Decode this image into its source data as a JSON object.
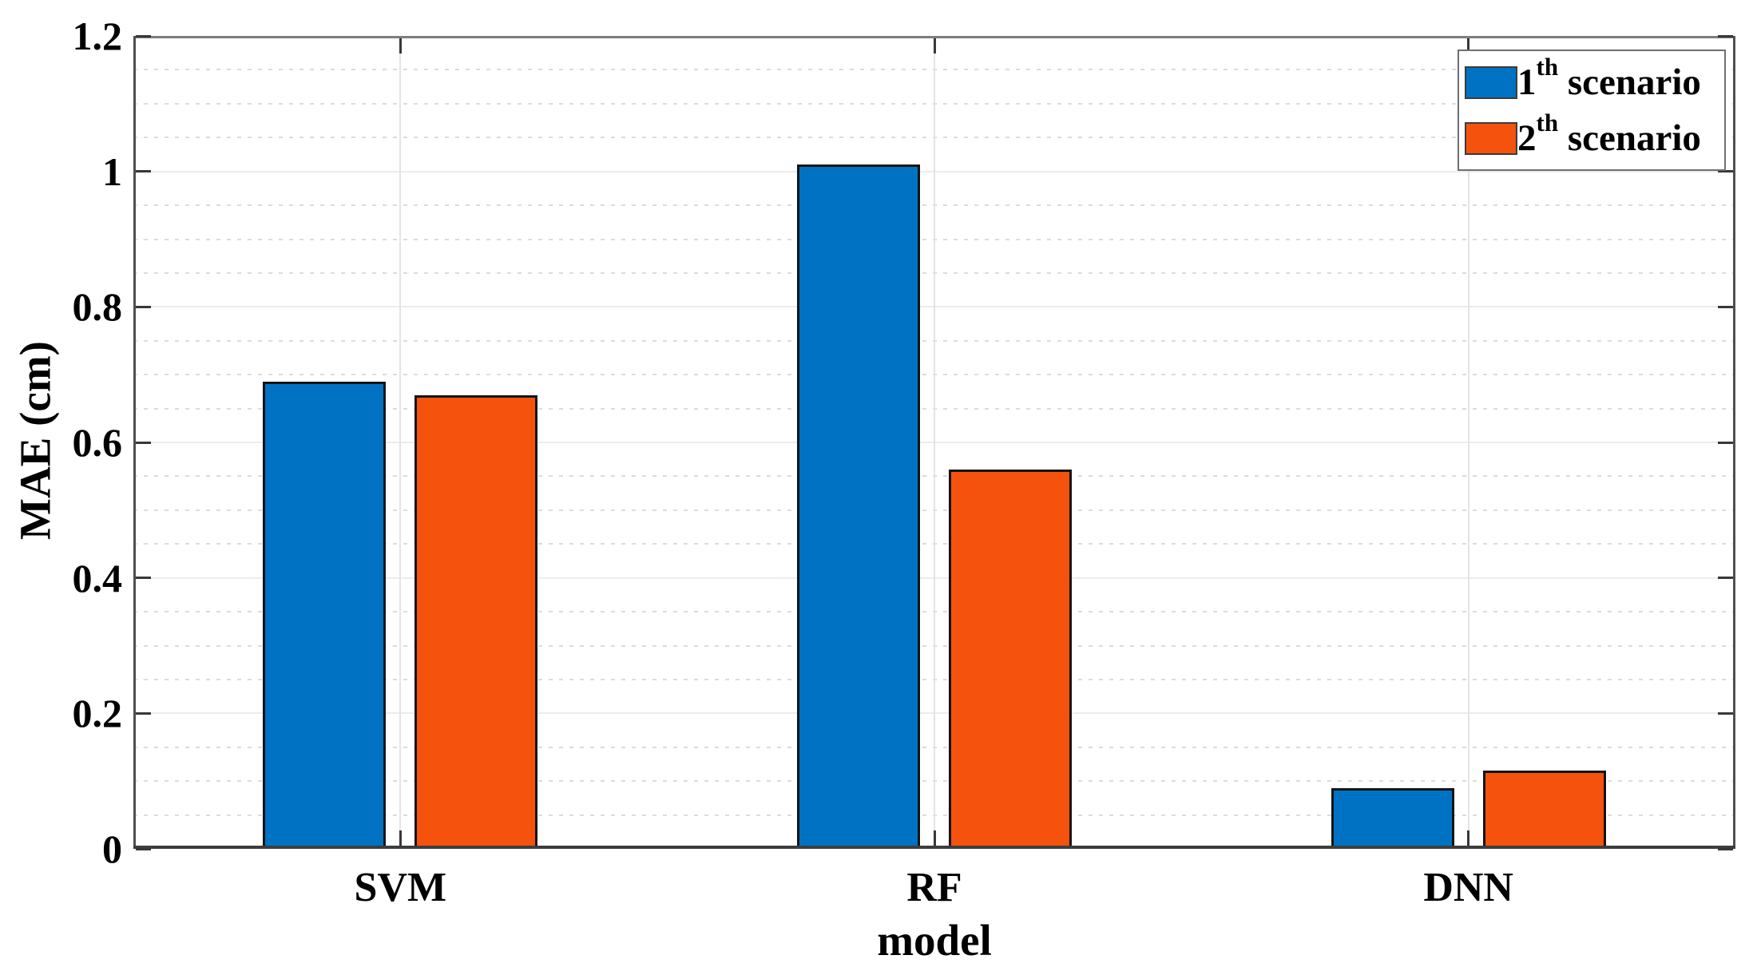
{
  "chart_data": {
    "type": "bar",
    "title": "",
    "categories": [
      "SVM",
      "RF",
      "DNN"
    ],
    "series": [
      {
        "name": "1th scenario",
        "label_base": "1",
        "label_sup": "th",
        "label_rest": " scenario",
        "color": "#0072C4",
        "values": [
          0.69,
          1.01,
          0.09
        ]
      },
      {
        "name": "2th scenario",
        "label_base": "2",
        "label_sup": "th",
        "label_rest": " scenario",
        "color": "#F4520D",
        "values": [
          0.67,
          0.56,
          0.115
        ]
      }
    ],
    "xlabel": "model",
    "ylabel": "MAE (cm)",
    "ylim": [
      0,
      1.2
    ],
    "yticks": [
      0,
      0.2,
      0.4,
      0.6,
      0.8,
      1,
      1.2
    ],
    "ytick_labels": [
      "0",
      "0.2",
      "0.4",
      "0.6",
      "0.8",
      "1",
      "1.2"
    ],
    "minor_tick_step": 0.05,
    "grid": {
      "major": "solid",
      "minor": "dotted",
      "x_major": "solid"
    },
    "legend_position": "top-right"
  },
  "colors": {
    "series1": "#0072C4",
    "series2": "#F4520D",
    "bar_border": "#141414",
    "grid_major": "#ececec",
    "grid_minor": "#dcdcdc",
    "axis": "#4f4f4f",
    "text": "#000000",
    "background": "#ffffff"
  }
}
